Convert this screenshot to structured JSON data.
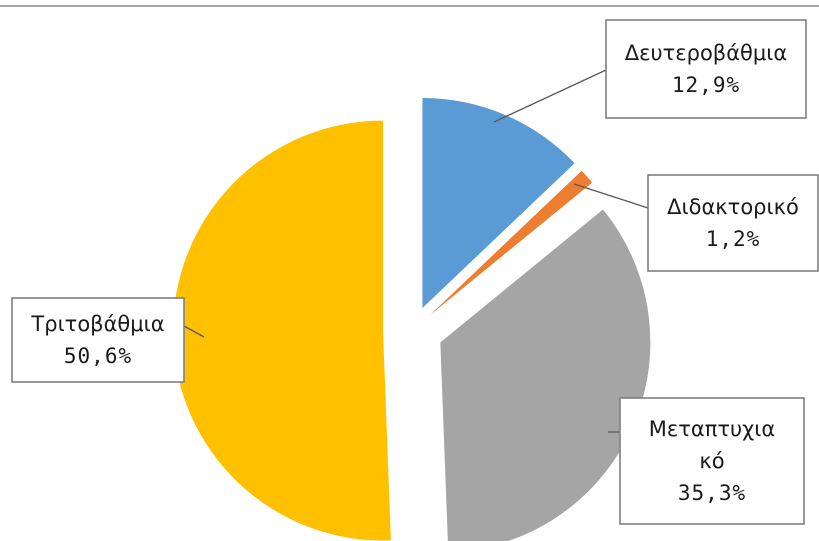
{
  "chart_data": {
    "type": "pie",
    "slices": [
      {
        "name": "Δευτεροβάθμια",
        "value": 12.9,
        "pct_label": "12,9%",
        "color": "#5b9bd5"
      },
      {
        "name": "Διδακτορικό",
        "value": 1.2,
        "pct_label": "1,2%",
        "color": "#ed7d31"
      },
      {
        "name": "Μεταπτυχιακό",
        "label_lines": [
          "Μεταπτυχια",
          "κό"
        ],
        "value": 35.3,
        "pct_label": "35,3%",
        "color": "#a5a5a5"
      },
      {
        "name": "Τριτοβάθμια",
        "value": 50.6,
        "pct_label": "50,6%",
        "color": "#ffc000"
      }
    ],
    "legend": "none",
    "data_labels": "callouts"
  }
}
